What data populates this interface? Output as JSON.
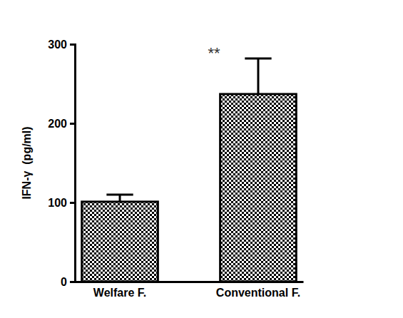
{
  "chart_data": {
    "type": "bar",
    "y_label": "IFN-γ  (pg/ml)",
    "categories": [
      "Welfare F.",
      "Conventional F."
    ],
    "values": [
      101,
      237
    ],
    "errors": [
      9,
      45
    ],
    "color": "#000000",
    "ylim": [
      0,
      300
    ],
    "yticks": [
      0,
      100,
      200,
      300
    ],
    "grid": false,
    "annotations": [
      {
        "text": "**"
      }
    ]
  }
}
